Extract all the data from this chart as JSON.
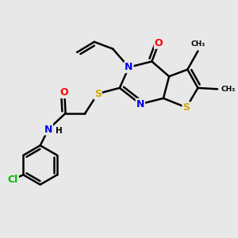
{
  "background_color": "#e8e8e8",
  "bond_color": "#000000",
  "atom_colors": {
    "N": "#0000ee",
    "S": "#ccaa00",
    "O": "#ff0000",
    "Cl": "#00bb00",
    "C": "#000000",
    "H": "#000000"
  },
  "bond_width": 1.8,
  "figsize": [
    3.0,
    3.0
  ],
  "dpi": 100
}
